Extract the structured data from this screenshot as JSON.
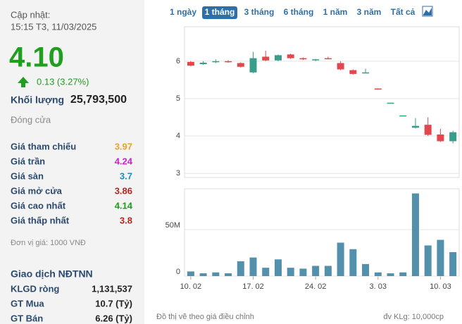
{
  "header": {
    "updated_label": "Cập nhật:",
    "updated_time": "15:15 T3, 11/03/2025",
    "price": "4.10",
    "price_color": "#1f9e1f",
    "change": "0.13 (3.27%)",
    "volume_label": "Khối lượng",
    "volume": "25,793,500",
    "status": "Đóng cửa"
  },
  "stats": [
    {
      "label": "Giá tham chiếu",
      "value": "3.97",
      "color": "#e8a12e"
    },
    {
      "label": "Giá trần",
      "value": "4.24",
      "color": "#d21fd2"
    },
    {
      "label": "Giá sàn",
      "value": "3.7",
      "color": "#1d8db8"
    },
    {
      "label": "Giá mở cửa",
      "value": "3.86",
      "color": "#b3261e"
    },
    {
      "label": "Giá cao nhất",
      "value": "4.14",
      "color": "#1f9e1f"
    },
    {
      "label": "Giá thấp nhất",
      "value": "3.8",
      "color": "#b3261e"
    }
  ],
  "unit_note": "Đơn vị giá: 1000 VNĐ",
  "foreign": {
    "title": "Giao dịch NĐTNN",
    "rows": [
      {
        "label": "KLGD ròng",
        "value": "1,131,537"
      },
      {
        "label": "GT Mua",
        "value": "10.7 (Tỷ)"
      },
      {
        "label": "GT Bán",
        "value": "6.26 (Tỷ)"
      }
    ]
  },
  "tabs": [
    "1 ngày",
    "1 tháng",
    "3 tháng",
    "6 tháng",
    "1 năm",
    "3 năm",
    "Tất cả"
  ],
  "active_tab": 1,
  "footer": {
    "note": "Đồ thị vẽ theo giá điều chỉnh",
    "unit": "đv KLg: 10,000cp"
  },
  "chart_data": [
    {
      "type": "candlestick",
      "categories": [
        "10. 02",
        null,
        null,
        null,
        null,
        "17. 02",
        null,
        null,
        null,
        null,
        "24. 02",
        null,
        null,
        null,
        null,
        "3. 03",
        null,
        null,
        null,
        null,
        "10. 03",
        null
      ],
      "open": [
        5.98,
        5.92,
        5.98,
        6.0,
        5.95,
        5.7,
        6.12,
        6.02,
        6.18,
        6.08,
        6.03,
        6.08,
        5.95,
        5.76,
        5.68,
        5.27,
        4.89,
        4.55,
        4.22,
        4.3,
        4.04,
        3.86
      ],
      "high": [
        6.0,
        6.0,
        6.05,
        6.03,
        5.97,
        6.25,
        6.28,
        6.18,
        6.2,
        6.1,
        6.06,
        6.12,
        6.0,
        5.78,
        5.8,
        5.27,
        4.89,
        4.55,
        4.48,
        4.5,
        4.19,
        4.14
      ],
      "low": [
        5.86,
        5.9,
        5.95,
        5.96,
        5.83,
        5.68,
        6.0,
        6.0,
        6.06,
        6.03,
        6.0,
        6.05,
        5.76,
        5.64,
        5.68,
        5.26,
        4.89,
        4.55,
        4.2,
        4.0,
        3.84,
        3.8
      ],
      "close": [
        5.88,
        5.96,
        6.0,
        5.98,
        5.85,
        6.08,
        6.02,
        6.16,
        6.08,
        6.05,
        6.05,
        6.06,
        5.78,
        5.66,
        5.7,
        5.26,
        4.89,
        4.55,
        4.27,
        4.03,
        3.86,
        4.1
      ],
      "up_color": "#3a9c8a",
      "down_color": "#e2474d",
      "ylim": [
        2.89,
        6.92
      ],
      "yticks": [
        3,
        4,
        5,
        6
      ],
      "grid": true
    },
    {
      "type": "bar",
      "values": [
        5,
        3,
        4,
        3,
        16,
        20,
        9,
        18,
        9,
        8,
        11,
        11,
        36,
        29,
        13,
        4,
        3,
        4,
        89,
        33,
        39,
        25.79
      ],
      "color": "#5290ab",
      "ylim": [
        0,
        94
      ],
      "yticks": [
        0,
        {
          "value": 50,
          "label": "50M"
        }
      ],
      "grid": true
    }
  ]
}
